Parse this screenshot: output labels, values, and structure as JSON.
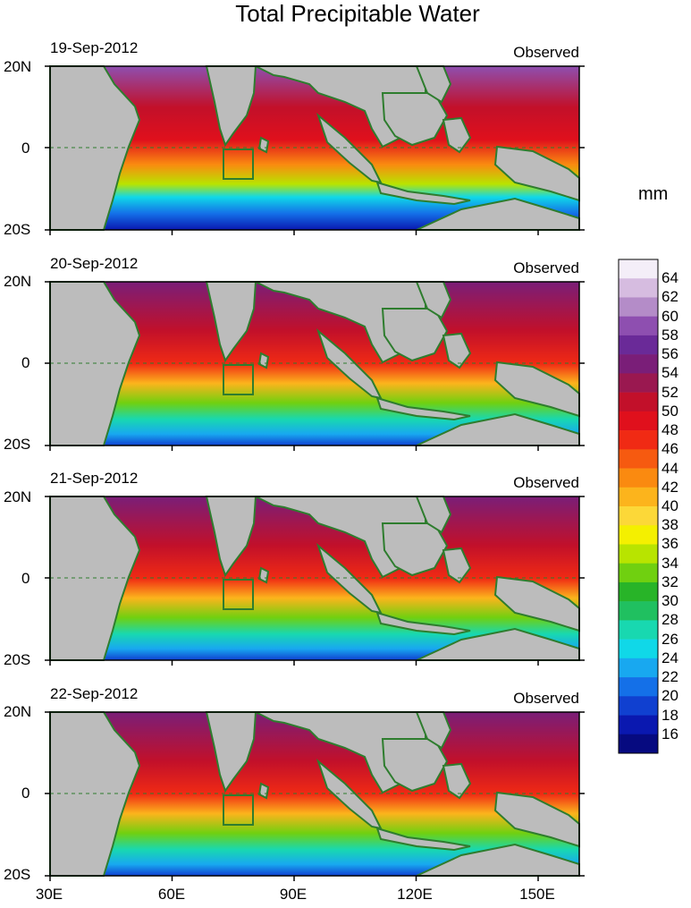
{
  "title": "Total Precipitable Water",
  "unit": "mm",
  "panels": [
    {
      "date": "19-Sep-2012",
      "label": "Observed"
    },
    {
      "date": "20-Sep-2012",
      "label": "Observed"
    },
    {
      "date": "21-Sep-2012",
      "label": "Observed"
    },
    {
      "date": "22-Sep-2012",
      "label": "Observed"
    }
  ],
  "lat_labels": [
    "20N",
    "0",
    "20S"
  ],
  "lon_labels": [
    "30E",
    "60E",
    "90E",
    "120E",
    "150E"
  ],
  "colorbar": {
    "labels": [
      "64",
      "62",
      "60",
      "58",
      "56",
      "54",
      "52",
      "50",
      "48",
      "46",
      "44",
      "42",
      "40",
      "38",
      "36",
      "34",
      "32",
      "30",
      "28",
      "26",
      "24",
      "22",
      "20",
      "18",
      "16"
    ],
    "colors": [
      "#f4eef8",
      "#d6bce0",
      "#b48cc8",
      "#8e4fb0",
      "#6a2a98",
      "#7a1e78",
      "#9a1850",
      "#c2102a",
      "#e0101c",
      "#f02a14",
      "#f65a10",
      "#fa8a10",
      "#fcb41c",
      "#fcd838",
      "#f4f000",
      "#b8e400",
      "#70d010",
      "#28b428",
      "#20c060",
      "#18d8b0",
      "#10d8e8",
      "#18a8f0",
      "#1470e8",
      "#1040d0",
      "#0a18b0",
      "#060a80"
    ],
    "land_color": "#bcbcbc",
    "coast_color": "#2e7d2e"
  }
}
